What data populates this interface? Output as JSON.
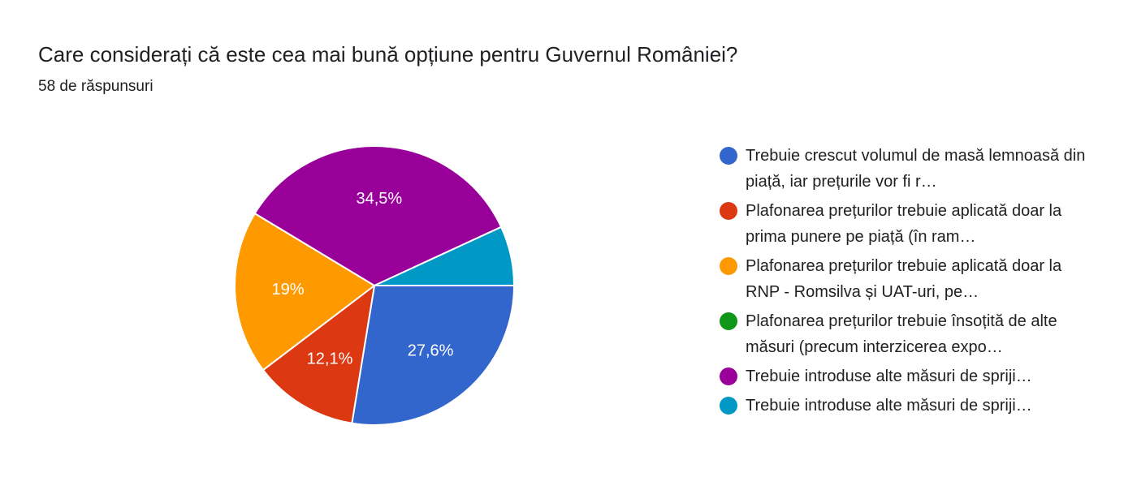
{
  "chart_data": {
    "type": "pie",
    "title": "Care considerați că este cea mai bună opțiune pentru Guvernul României?",
    "subtitle": "58 de răspunsuri",
    "categories": [
      "Trebuie crescut volumul de masă lemnoasă din piață, iar prețurile vor fi r…",
      "Plafonarea prețurilor trebuie aplicată doar la prima punere pe piață (în ram…",
      "Plafonarea prețurilor trebuie aplicată doar la RNP - Romsilva și UAT-uri, pe…",
      "Plafonarea prețurilor trebuie însoțită de alte măsuri (precum interzicerea expo…",
      "Trebuie introduse alte măsuri de spriji…",
      "Trebuie introduse alte măsuri de spriji…"
    ],
    "values": [
      27.6,
      12.1,
      19,
      0,
      34.5,
      6.9
    ],
    "value_labels": [
      "27,6%",
      "12,1%",
      "19%",
      null,
      "34,5%",
      null
    ],
    "colors": [
      "#3366cc",
      "#dc3912",
      "#ff9900",
      "#109618",
      "#990099",
      "#0099c6"
    ]
  }
}
